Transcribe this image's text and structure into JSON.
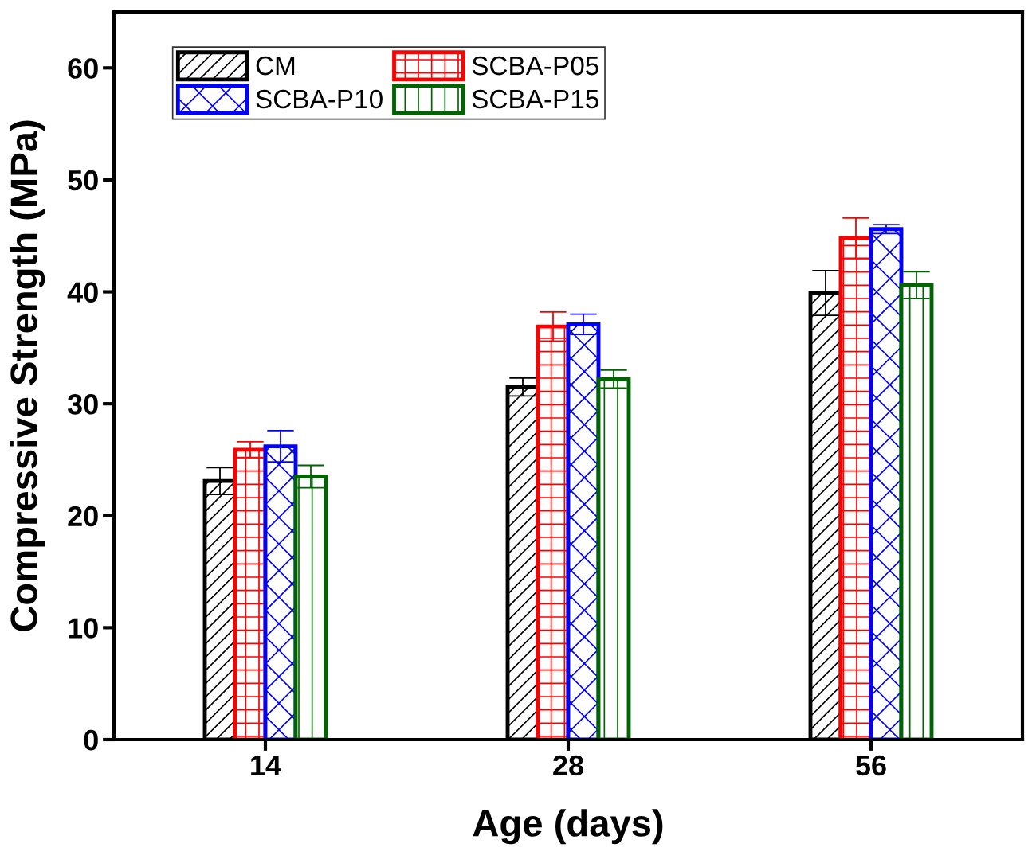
{
  "chart_data": {
    "type": "bar",
    "xlabel": "Age (days)",
    "ylabel": "Compressive Strength (MPa)",
    "categories": [
      "14",
      "28",
      "56"
    ],
    "series": [
      {
        "name": "CM",
        "color": "#000000",
        "values": [
          23.1,
          31.5,
          39.9
        ],
        "errors": [
          1.2,
          0.8,
          2.0
        ]
      },
      {
        "name": "SCBA-P05",
        "color": "#ff0000",
        "values": [
          25.9,
          36.9,
          44.8
        ],
        "errors": [
          0.7,
          1.3,
          1.8
        ]
      },
      {
        "name": "SCBA-P10",
        "color": "#0000ff",
        "values": [
          26.2,
          37.1,
          45.6
        ],
        "errors": [
          1.4,
          0.9,
          0.4
        ]
      },
      {
        "name": "SCBA-P15",
        "color": "#006400",
        "values": [
          23.5,
          32.2,
          40.6
        ],
        "errors": [
          1.0,
          0.8,
          1.2
        ]
      }
    ],
    "ylim": [
      0,
      65
    ],
    "yticks": [
      0,
      10,
      20,
      30,
      40,
      50,
      60
    ],
    "grid": false,
    "legend": "top left"
  }
}
